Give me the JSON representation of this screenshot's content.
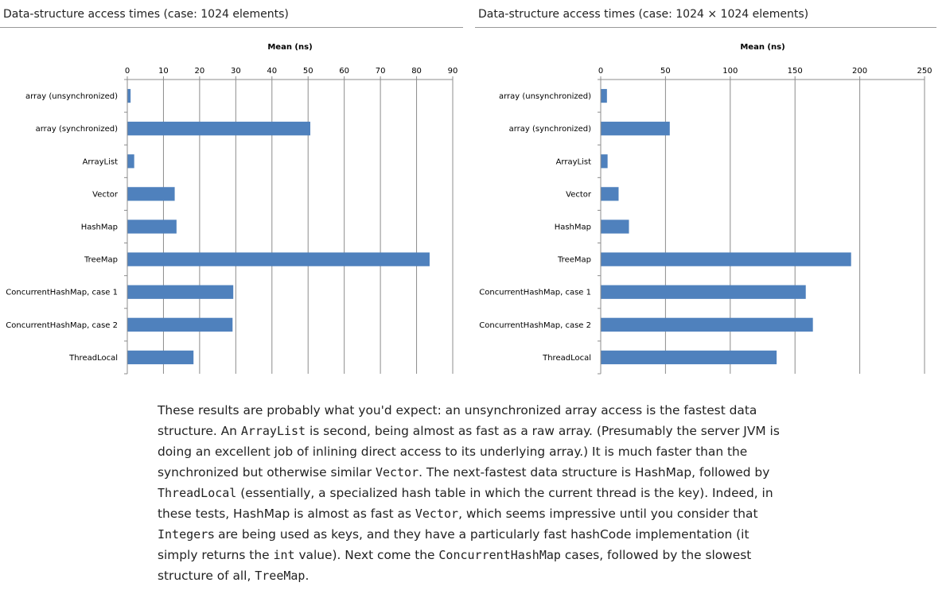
{
  "charts": [
    {
      "caption": "Data-structure access times (case: 1024 elements)"
    },
    {
      "caption": "Data-structure access times (case: 1024 × 1024 elements)"
    }
  ],
  "chart_data": [
    {
      "type": "bar",
      "orientation": "horizontal",
      "title": "Data-structure access times (case: 1024 elements)",
      "xlabel": "Mean (ns)",
      "xlim": [
        0,
        90
      ],
      "ticks": [
        0,
        10,
        20,
        30,
        40,
        50,
        60,
        70,
        80,
        90
      ],
      "grid": true,
      "categories": [
        "array (unsynchronized)",
        "array (synchronized)",
        "ArrayList",
        "Vector",
        "HashMap",
        "TreeMap",
        "ConcurrentHashMap, case 1",
        "ConcurrentHashMap, case 2",
        "ThreadLocal"
      ],
      "values": [
        0.8,
        50.5,
        1.8,
        13,
        13.5,
        83.5,
        29.2,
        29,
        18.2
      ]
    },
    {
      "type": "bar",
      "orientation": "horizontal",
      "title": "Data-structure access times (case: 1024 × 1024 elements)",
      "xlabel": "Mean (ns)",
      "xlim": [
        0,
        250
      ],
      "ticks": [
        0,
        50,
        100,
        150,
        200,
        250
      ],
      "grid": true,
      "categories": [
        "array (unsynchronized)",
        "array (synchronized)",
        "ArrayList",
        "Vector",
        "HashMap",
        "TreeMap",
        "ConcurrentHashMap, case 1",
        "ConcurrentHashMap, case 2",
        "ThreadLocal"
      ],
      "values": [
        4.5,
        53,
        5,
        13.5,
        21.5,
        193,
        158,
        163.5,
        135.5
      ]
    }
  ],
  "prose": {
    "segments": [
      {
        "t": "These results are probably what you'd expect: an unsynchronized array access is the fastest data structure. An "
      },
      {
        "t": "ArrayList",
        "code": true
      },
      {
        "t": " is second, being almost as fast as a raw array. (Presumably the server JVM is doing an excellent job of inlining direct access to its underlying array.) It is much faster than the synchronized but otherwise similar "
      },
      {
        "t": "Vector",
        "code": true
      },
      {
        "t": ". The next-fastest data structure is HashMap, followed by "
      },
      {
        "t": "ThreadLocal",
        "code": true
      },
      {
        "t": " (essentially, a specialized hash table in which the current thread is the key). Indeed, in these tests, HashMap is almost as fast as "
      },
      {
        "t": "Vector",
        "code": true
      },
      {
        "t": ", which seems impressive until you consider that "
      },
      {
        "t": "Integer",
        "code": true
      },
      {
        "t": "s are being used as keys, and they have a particularly fast hashCode implementation (it simply returns the "
      },
      {
        "t": "int",
        "code": true
      },
      {
        "t": " value). Next come the "
      },
      {
        "t": "ConcurrentHashMap",
        "code": true
      },
      {
        "t": " cases, followed by the slowest structure of all, "
      },
      {
        "t": "TreeMap",
        "code": true
      },
      {
        "t": "."
      }
    ]
  }
}
